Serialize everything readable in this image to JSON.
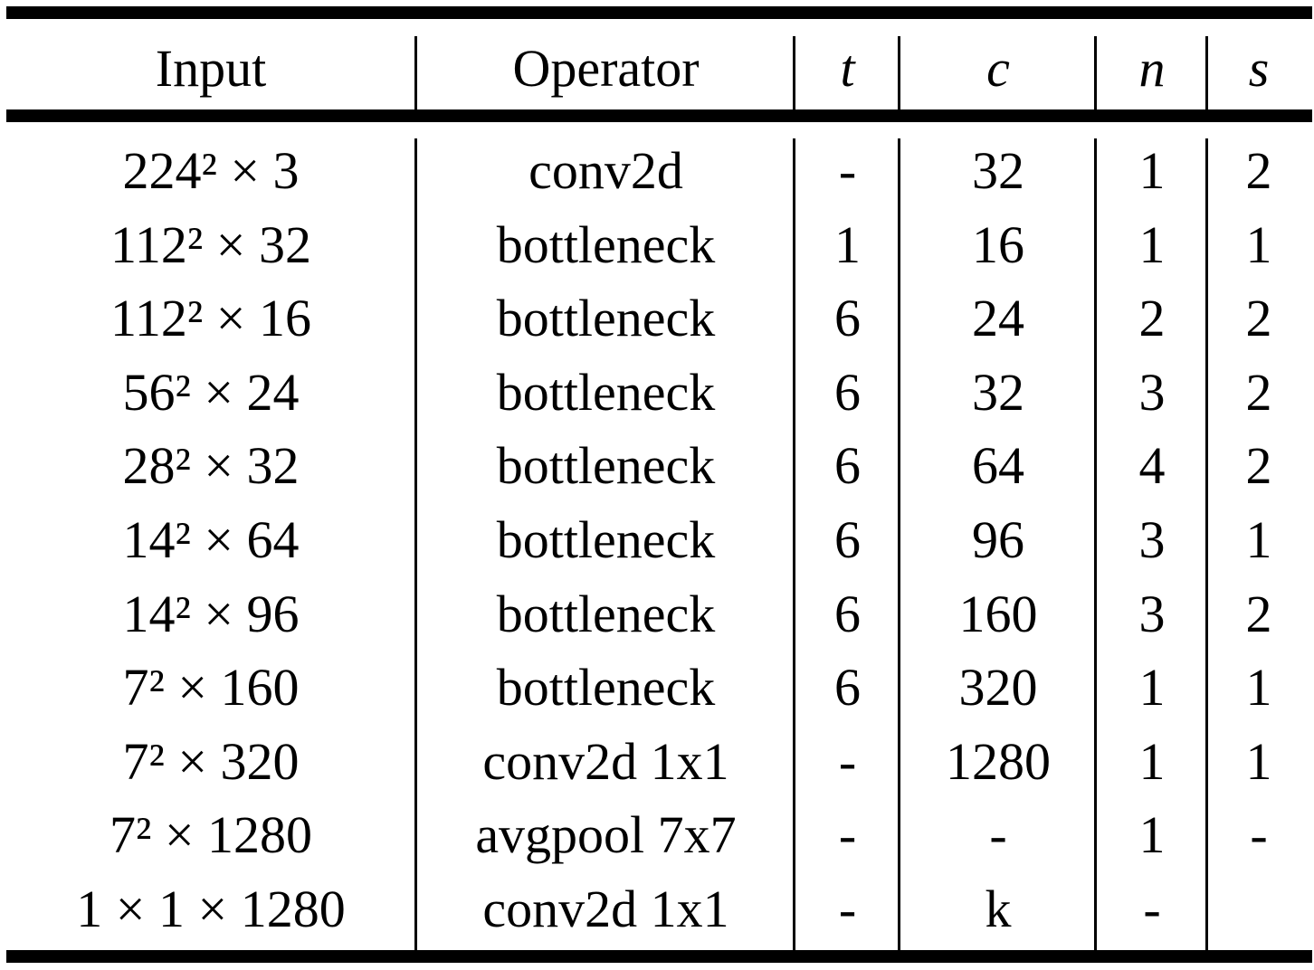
{
  "table": {
    "headers": {
      "input": "Input",
      "operator": "Operator",
      "t": "t",
      "c": "c",
      "n": "n",
      "s": "s"
    },
    "rows": [
      {
        "input": "224² × 3",
        "operator": "conv2d",
        "t": "-",
        "c": "32",
        "n": "1",
        "s": "2"
      },
      {
        "input": "112² × 32",
        "operator": "bottleneck",
        "t": "1",
        "c": "16",
        "n": "1",
        "s": "1"
      },
      {
        "input": "112² × 16",
        "operator": "bottleneck",
        "t": "6",
        "c": "24",
        "n": "2",
        "s": "2"
      },
      {
        "input": "56² × 24",
        "operator": "bottleneck",
        "t": "6",
        "c": "32",
        "n": "3",
        "s": "2"
      },
      {
        "input": "28² × 32",
        "operator": "bottleneck",
        "t": "6",
        "c": "64",
        "n": "4",
        "s": "2"
      },
      {
        "input": "14² × 64",
        "operator": "bottleneck",
        "t": "6",
        "c": "96",
        "n": "3",
        "s": "1"
      },
      {
        "input": "14² × 96",
        "operator": "bottleneck",
        "t": "6",
        "c": "160",
        "n": "3",
        "s": "2"
      },
      {
        "input": "7² × 160",
        "operator": "bottleneck",
        "t": "6",
        "c": "320",
        "n": "1",
        "s": "1"
      },
      {
        "input": "7² × 320",
        "operator": "conv2d 1x1",
        "t": "-",
        "c": "1280",
        "n": "1",
        "s": "1"
      },
      {
        "input": "7² × 1280",
        "operator": "avgpool 7x7",
        "t": "-",
        "c": "-",
        "n": "1",
        "s": "-"
      },
      {
        "input": "1 × 1 × 1280",
        "operator": "conv2d 1x1",
        "t": "-",
        "c": "k",
        "n": "-",
        "s": ""
      }
    ]
  }
}
